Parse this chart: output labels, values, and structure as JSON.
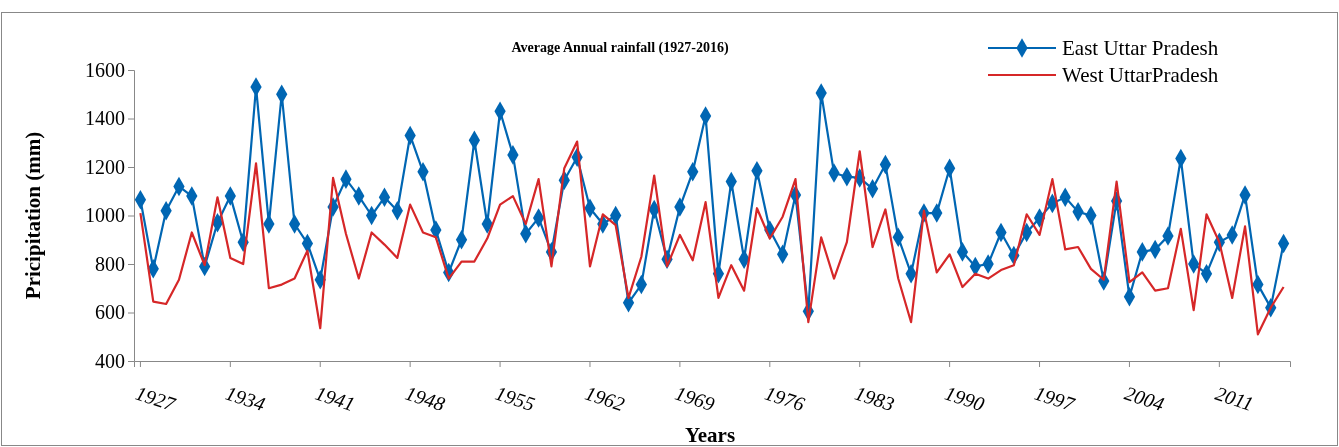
{
  "chart_data": {
    "type": "line",
    "title": "Average Annual rainfall (1927-2016)",
    "xlabel": "Years",
    "ylabel": "Pricipitation (mm)",
    "categories": [
      "1927",
      null,
      null,
      null,
      null,
      null,
      null,
      "1934",
      null,
      null,
      null,
      null,
      null,
      null,
      "1941",
      null,
      null,
      null,
      null,
      null,
      null,
      "1948",
      null,
      null,
      null,
      null,
      null,
      null,
      "1955",
      null,
      null,
      null,
      null,
      null,
      null,
      "1962",
      null,
      null,
      null,
      null,
      null,
      null,
      "1969",
      null,
      null,
      null,
      null,
      null,
      null,
      "1976",
      null,
      null,
      null,
      null,
      null,
      null,
      "1983",
      null,
      null,
      null,
      null,
      null,
      null,
      "1990",
      null,
      null,
      null,
      null,
      null,
      null,
      "1997",
      null,
      null,
      null,
      null,
      null,
      null,
      "2004",
      null,
      null,
      null,
      null,
      null,
      null,
      "2011",
      null,
      null,
      null,
      null,
      null
    ],
    "series": [
      {
        "name": "East Uttar Pradesh",
        "color": "#0066b3",
        "marker": "diamond",
        "values": [
          1065,
          780,
          1020,
          1120,
          1080,
          790,
          970,
          1080,
          890,
          1530,
          965,
          1500,
          965,
          885,
          735,
          1035,
          1150,
          1080,
          1000,
          1075,
          1020,
          1330,
          1180,
          940,
          765,
          900,
          1310,
          965,
          1430,
          1250,
          925,
          990,
          850,
          1145,
          1240,
          1030,
          965,
          1000,
          640,
          715,
          1025,
          820,
          1035,
          1180,
          1410,
          760,
          1140,
          820,
          1185,
          940,
          840,
          1085,
          605,
          1505,
          1175,
          1160,
          1155,
          1110,
          1210,
          910,
          760,
          1010,
          1010,
          1195,
          850,
          790,
          800,
          930,
          835,
          930,
          990,
          1050,
          1075,
          1015,
          1000,
          730,
          1060,
          665,
          850,
          860,
          915,
          1235,
          800,
          760,
          890,
          920,
          1085,
          715,
          620,
          885
        ]
      },
      {
        "name": "West UttarPradesh",
        "color": "#d62728",
        "marker": "none",
        "values": [
          1010,
          645,
          635,
          735,
          930,
          795,
          1075,
          825,
          800,
          1215,
          700,
          715,
          740,
          855,
          535,
          1155,
          925,
          740,
          930,
          880,
          825,
          1045,
          930,
          910,
          740,
          810,
          810,
          905,
          1045,
          1080,
          965,
          1150,
          790,
          1195,
          1305,
          790,
          1005,
          960,
          660,
          830,
          1165,
          790,
          920,
          815,
          1055,
          660,
          795,
          690,
          1030,
          905,
          995,
          1150,
          560,
          910,
          740,
          890,
          1265,
          870,
          1025,
          740,
          560,
          1020,
          765,
          840,
          705,
          760,
          740,
          775,
          795,
          1005,
          920,
          1150,
          860,
          870,
          780,
          735,
          1140,
          725,
          765,
          690,
          700,
          945,
          610,
          1005,
          890,
          660,
          955,
          510,
          620,
          705
        ]
      }
    ],
    "ylim": [
      400,
      1600
    ],
    "yticks": [
      400,
      600,
      800,
      1000,
      1200,
      1400,
      1600
    ],
    "grid": false,
    "legend": "top right",
    "line_style": "solid"
  }
}
